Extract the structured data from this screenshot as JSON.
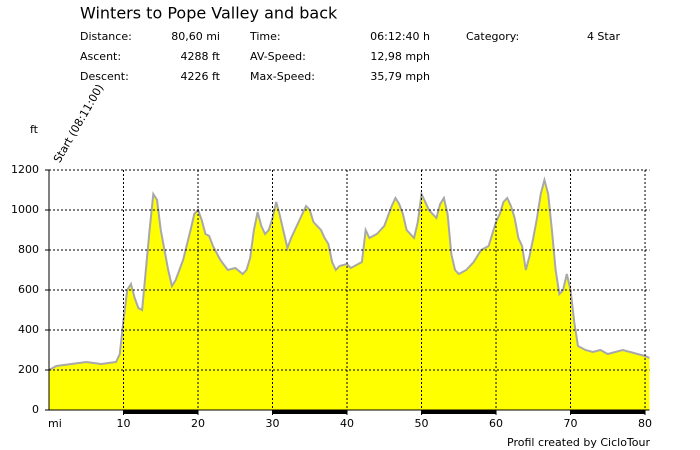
{
  "chart_data": {
    "type": "area",
    "title": "Winters to Pope Valley and back",
    "stats": [
      [
        {
          "label": "Distance:",
          "value": "80,60 mi"
        },
        {
          "label": "Time:",
          "value": "06:12:40 h"
        },
        {
          "label": "Category:",
          "value": "4 Star"
        }
      ],
      [
        {
          "label": "Ascent:",
          "value": "4288 ft"
        },
        {
          "label": "AV-Speed:",
          "value": "12,98 mph"
        }
      ],
      [
        {
          "label": "Descent:",
          "value": "4226 ft"
        },
        {
          "label": "Max-Speed:",
          "value": "35,79 mph"
        }
      ]
    ],
    "annotation": "Start (08:11:00)",
    "ylabel": "ft",
    "xlabel": "mi",
    "footer": "Profil created by CicloTour",
    "color": "#ffff00",
    "line_color": "#a8a8a8",
    "grid": true,
    "xlim": [
      0,
      80.6
    ],
    "ylim": [
      0,
      1200
    ],
    "xticks": [
      10,
      20,
      30,
      40,
      50,
      60,
      70,
      80
    ],
    "yticks": [
      0,
      200,
      400,
      600,
      800,
      1000,
      1200
    ],
    "x": [
      0,
      1,
      3,
      5,
      7,
      9,
      9.5,
      10,
      10.5,
      11,
      11.5,
      12,
      12.5,
      13,
      13.5,
      14,
      14.5,
      15,
      16,
      16.5,
      17,
      18,
      19,
      19.5,
      20,
      20.5,
      21,
      21.5,
      22,
      23,
      24,
      25,
      26,
      26.5,
      27,
      27.5,
      28,
      28.5,
      29,
      29.5,
      30,
      30.5,
      31,
      32,
      32.5,
      33,
      34,
      34.5,
      35,
      35.5,
      36,
      36.5,
      37,
      37.5,
      38,
      38.5,
      39,
      40,
      40.5,
      41,
      42,
      42.5,
      43,
      44,
      45,
      46,
      46.5,
      47,
      47.5,
      48,
      48.5,
      49,
      49.5,
      50,
      50.5,
      51,
      52,
      52.5,
      53,
      53.5,
      54,
      54.5,
      55,
      56,
      57,
      58,
      59,
      59.5,
      60,
      60.5,
      61,
      61.5,
      62,
      62.5,
      63,
      63.5,
      64,
      64.5,
      65,
      65.5,
      66,
      66.5,
      67,
      67.5,
      68,
      68.5,
      69,
      69.5,
      70,
      70.5,
      71,
      72,
      73,
      74,
      75,
      76,
      77,
      78,
      79,
      80,
      80.6
    ],
    "values": [
      200,
      220,
      230,
      240,
      230,
      240,
      280,
      450,
      600,
      630,
      560,
      510,
      500,
      700,
      900,
      1080,
      1050,
      900,
      700,
      620,
      650,
      750,
      900,
      980,
      1000,
      950,
      880,
      870,
      820,
      750,
      700,
      710,
      680,
      700,
      760,
      900,
      990,
      920,
      880,
      900,
      960,
      1040,
      970,
      810,
      860,
      900,
      980,
      1020,
      1000,
      940,
      920,
      900,
      860,
      830,
      740,
      700,
      720,
      730,
      710,
      720,
      740,
      900,
      860,
      880,
      920,
      1020,
      1060,
      1030,
      980,
      900,
      880,
      860,
      940,
      1080,
      1040,
      1000,
      960,
      1030,
      1060,
      980,
      780,
      700,
      680,
      700,
      740,
      800,
      820,
      880,
      940,
      980,
      1040,
      1060,
      1020,
      960,
      860,
      820,
      700,
      770,
      860,
      960,
      1080,
      1150,
      1080,
      900,
      700,
      580,
      600,
      680,
      600,
      440,
      320,
      300,
      290,
      300,
      280,
      290,
      300,
      290,
      280,
      270,
      260
    ]
  }
}
